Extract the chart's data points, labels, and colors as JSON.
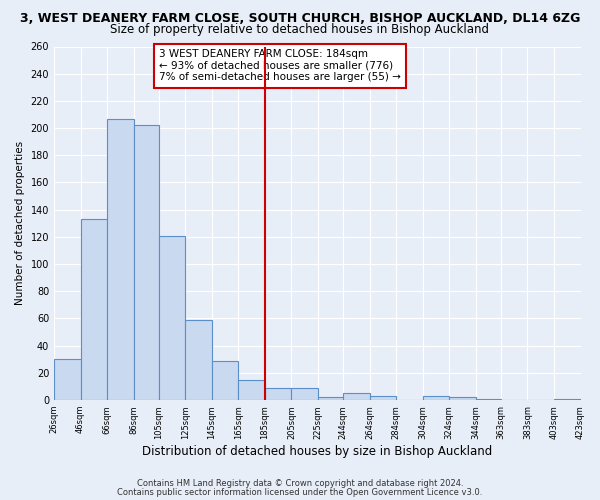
{
  "title": "3, WEST DEANERY FARM CLOSE, SOUTH CHURCH, BISHOP AUCKLAND, DL14 6ZG",
  "subtitle": "Size of property relative to detached houses in Bishop Auckland",
  "xlabel": "Distribution of detached houses by size in Bishop Auckland",
  "ylabel": "Number of detached properties",
  "bin_edges": [
    26,
    46,
    66,
    86,
    105,
    125,
    145,
    165,
    185,
    205,
    225,
    244,
    264,
    284,
    304,
    324,
    344,
    363,
    383,
    403,
    423
  ],
  "bin_labels": [
    "26sqm",
    "46sqm",
    "66sqm",
    "86sqm",
    "105sqm",
    "125sqm",
    "145sqm",
    "165sqm",
    "185sqm",
    "205sqm",
    "225sqm",
    "244sqm",
    "264sqm",
    "284sqm",
    "304sqm",
    "324sqm",
    "344sqm",
    "363sqm",
    "383sqm",
    "403sqm",
    "423sqm"
  ],
  "counts": [
    30,
    133,
    207,
    202,
    121,
    59,
    29,
    15,
    9,
    9,
    2,
    5,
    3,
    0,
    3,
    2,
    1,
    0,
    0,
    1
  ],
  "bar_facecolor": "#c9d9f0",
  "bar_edgecolor": "#5b8fc9",
  "bar_linewidth": 0.8,
  "vline_x": 185,
  "vline_color": "#cc0000",
  "annotation_line1": "3 WEST DEANERY FARM CLOSE: 184sqm",
  "annotation_line2": "← 93% of detached houses are smaller (776)",
  "annotation_line3": "7% of semi-detached houses are larger (55) →",
  "annotation_box_edgecolor": "#cc0000",
  "annotation_fontsize": 7.5,
  "ylim": [
    0,
    260
  ],
  "yticks": [
    0,
    20,
    40,
    60,
    80,
    100,
    120,
    140,
    160,
    180,
    200,
    220,
    240,
    260
  ],
  "bg_color": "#e8eef8",
  "plot_bg_color": "#e8eef8",
  "grid_color": "#ffffff",
  "footer1": "Contains HM Land Registry data © Crown copyright and database right 2024.",
  "footer2": "Contains public sector information licensed under the Open Government Licence v3.0.",
  "title_fontsize": 9,
  "subtitle_fontsize": 8.5,
  "xlabel_fontsize": 8.5,
  "ylabel_fontsize": 7.5
}
